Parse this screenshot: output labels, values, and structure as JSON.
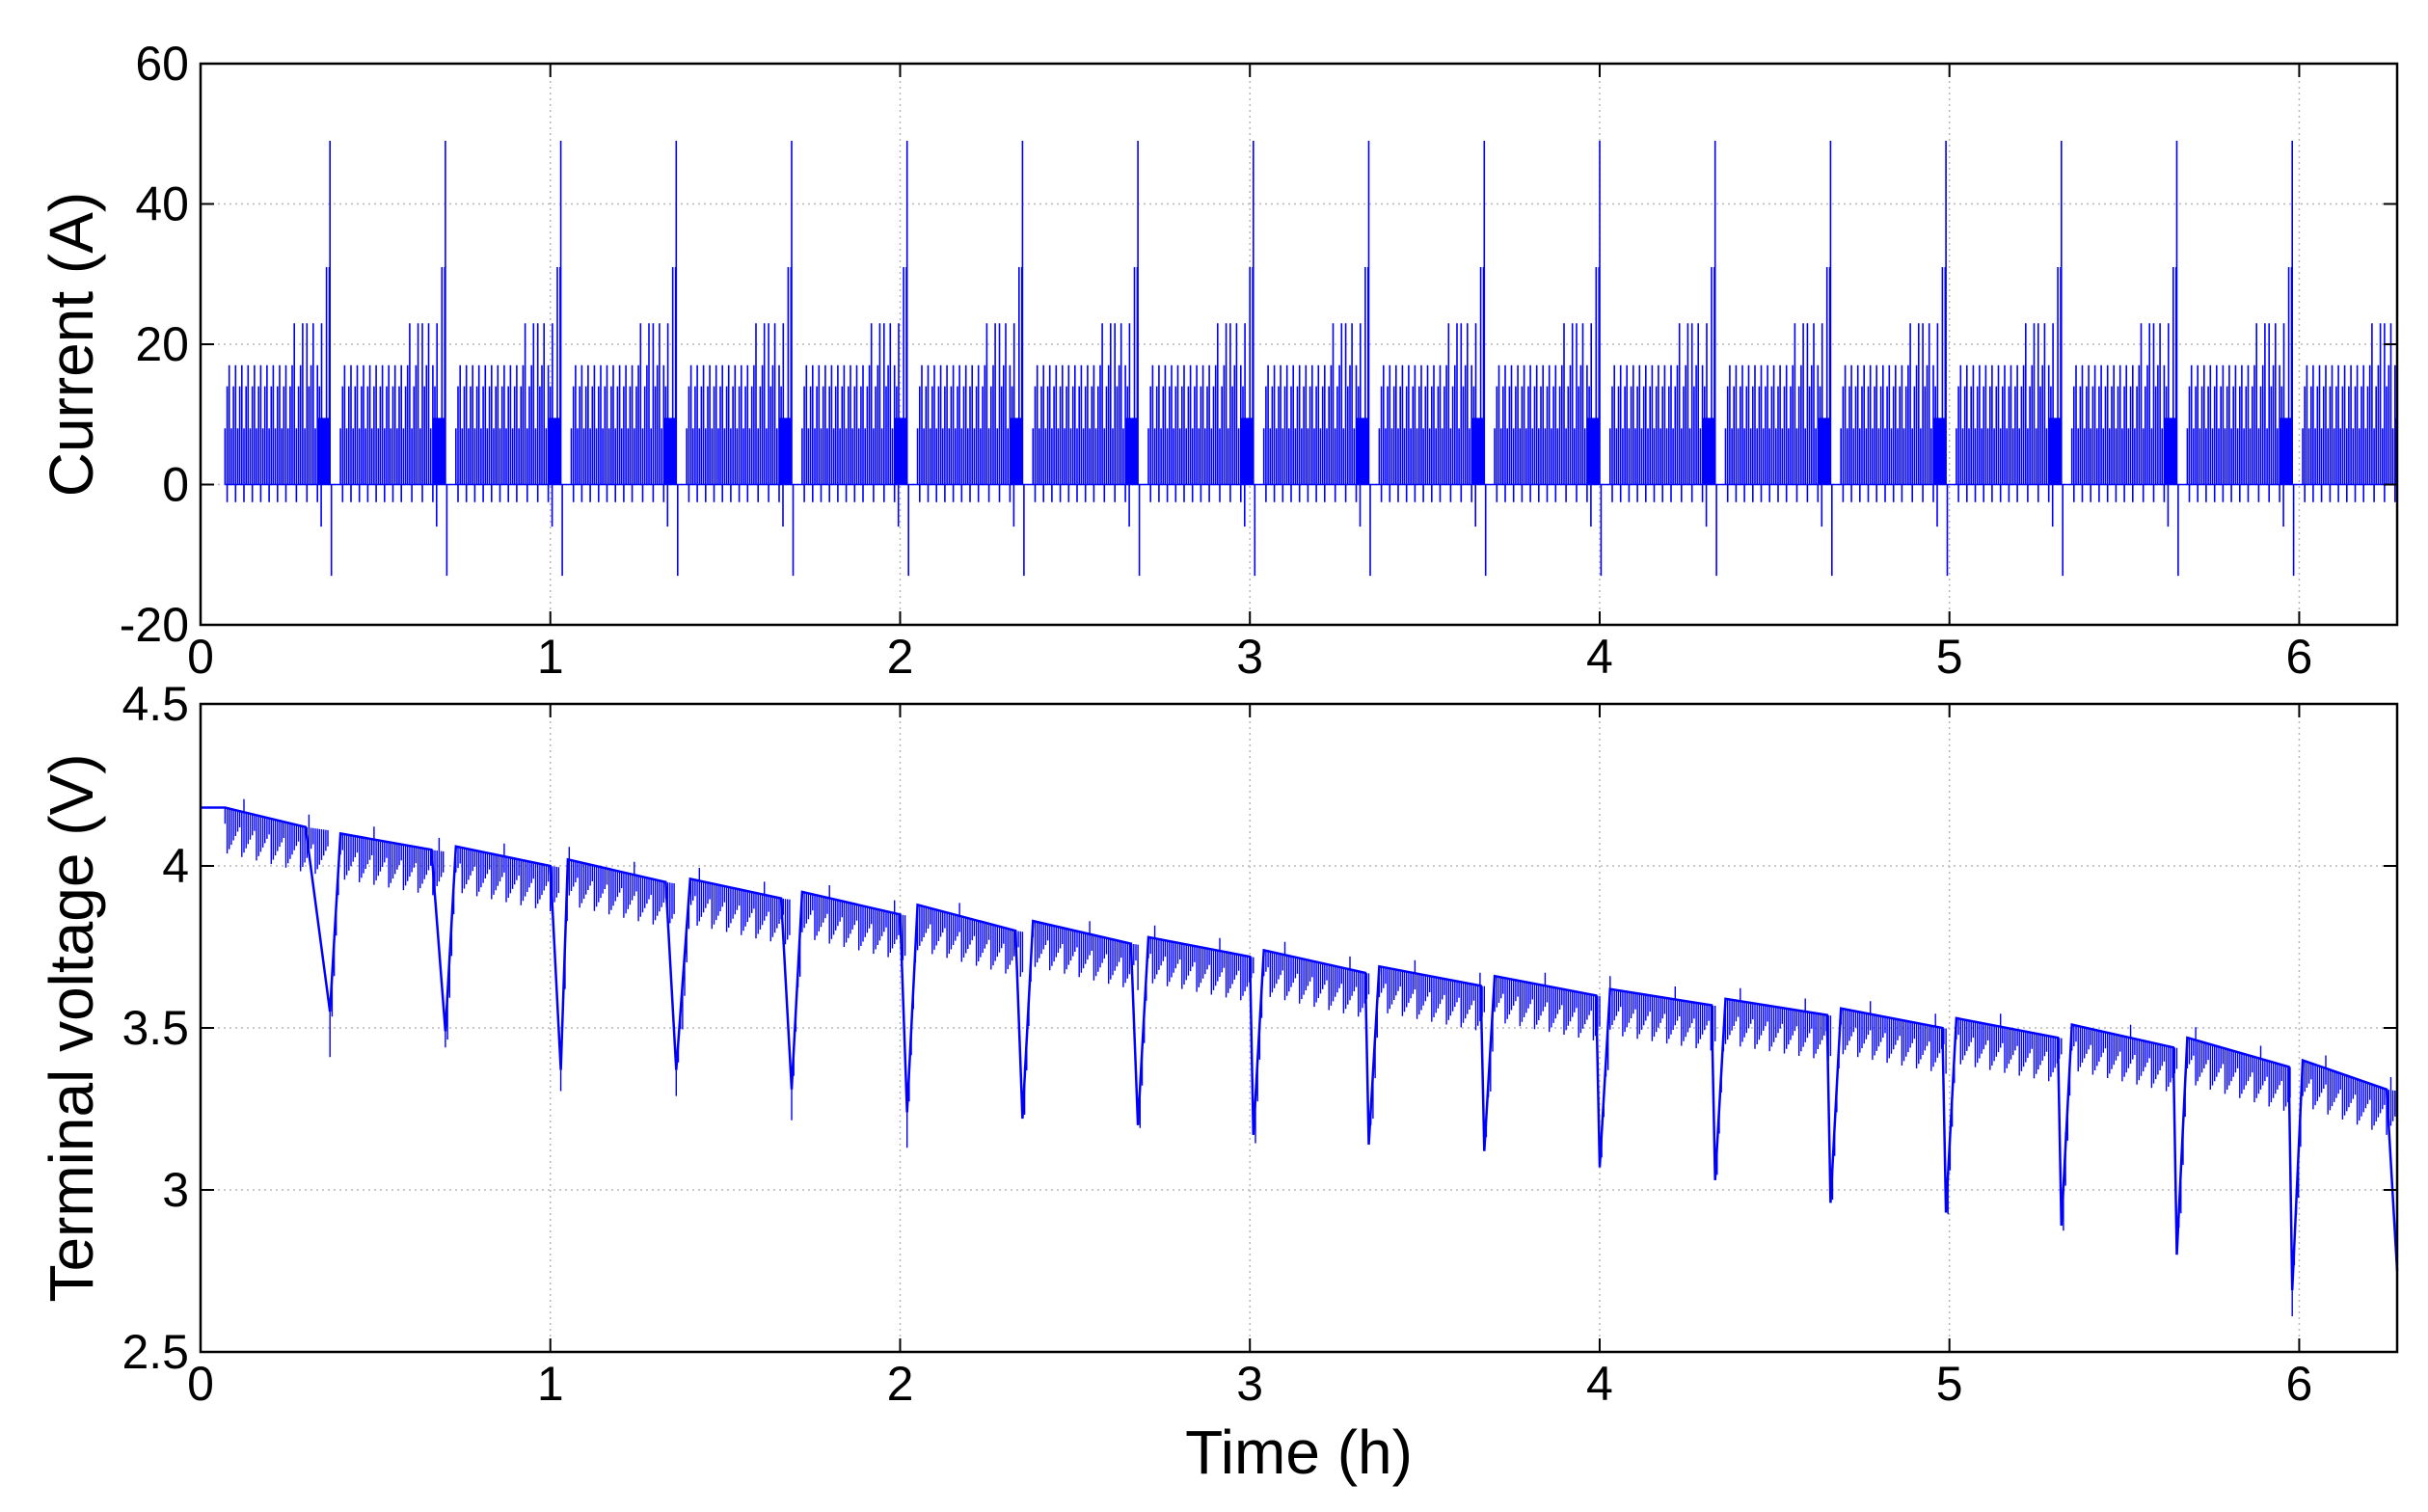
{
  "figure": {
    "xlabel": "Time (h)"
  },
  "chart_data": [
    {
      "type": "line",
      "ylabel": "Current (A)",
      "xlim": [
        0,
        6.28
      ],
      "ylim": [
        -20,
        60
      ],
      "xticks": [
        "0",
        "1",
        "2",
        "3",
        "4",
        "5",
        "6"
      ],
      "yticks": [
        "-20",
        "0",
        "20",
        "40",
        "60"
      ],
      "grid": true,
      "line_color": "#0000ff",
      "cycle_period_h": 0.33,
      "cycle_start_h": 0.07,
      "pulse_levels_A": [
        0,
        8,
        14,
        17,
        23,
        31,
        49
      ],
      "regen_levels_A": [
        -2.5,
        -6,
        -13
      ],
      "series": [
        {
          "name": "",
          "x": [
            0.07,
            0.1,
            0.15,
            0.2,
            0.25,
            0.3,
            0.33,
            0.35,
            0.37,
            0.4,
            0.45,
            0.5,
            0.55,
            0.6,
            0.64,
            0.66,
            0.7,
            0.73,
            1.03,
            1.36,
            1.69,
            2.02,
            2.35,
            2.68,
            3.01,
            3.34,
            3.67,
            4.0,
            4.33,
            4.66,
            4.99,
            5.32,
            5.65,
            5.98,
            6.28
          ],
          "values": [
            8,
            17,
            14,
            17,
            23,
            23,
            31,
            49,
            -13,
            17,
            17,
            17,
            23,
            23,
            31,
            49,
            -13,
            17,
            49,
            49,
            49,
            49,
            49,
            49,
            49,
            49,
            49,
            49,
            49,
            49,
            49,
            49,
            49,
            49,
            31
          ]
        }
      ]
    },
    {
      "type": "line",
      "ylabel": "Terminal voltage (V)",
      "xlim": [
        0,
        6.28
      ],
      "ylim": [
        2.5,
        4.5
      ],
      "xticks": [
        "0",
        "1",
        "2",
        "3",
        "4",
        "5",
        "6"
      ],
      "yticks": [
        "2.5",
        "3",
        "3.5",
        "4",
        "4.5"
      ],
      "grid": true,
      "line_color": "#0000ff",
      "series": [
        {
          "name": "",
          "x": [
            0.0,
            0.07,
            0.3,
            0.37,
            0.4,
            0.66,
            0.7,
            0.73,
            1.0,
            1.03,
            1.05,
            1.33,
            1.36,
            1.4,
            1.66,
            1.69,
            1.72,
            2.0,
            2.02,
            2.05,
            2.33,
            2.35,
            2.38,
            2.66,
            2.68,
            2.71,
            3.0,
            3.01,
            3.04,
            3.33,
            3.34,
            3.37,
            3.66,
            3.67,
            3.7,
            3.99,
            4.0,
            4.03,
            4.32,
            4.33,
            4.36,
            4.65,
            4.66,
            4.69,
            4.98,
            4.99,
            5.02,
            5.31,
            5.32,
            5.35,
            5.64,
            5.65,
            5.68,
            5.97,
            5.98,
            6.01,
            6.25,
            6.28
          ],
          "values": [
            4.18,
            4.18,
            4.12,
            3.55,
            4.1,
            4.05,
            3.49,
            4.06,
            4.0,
            3.37,
            4.02,
            3.95,
            3.37,
            3.96,
            3.9,
            3.31,
            3.92,
            3.85,
            3.24,
            3.88,
            3.8,
            3.22,
            3.83,
            3.76,
            3.2,
            3.78,
            3.72,
            3.17,
            3.74,
            3.67,
            3.14,
            3.69,
            3.63,
            3.12,
            3.66,
            3.6,
            3.07,
            3.62,
            3.57,
            3.03,
            3.59,
            3.54,
            2.96,
            3.56,
            3.5,
            2.93,
            3.53,
            3.47,
            2.89,
            3.51,
            3.44,
            2.8,
            3.47,
            3.38,
            2.69,
            3.4,
            3.31,
            2.75
          ]
        }
      ]
    }
  ]
}
